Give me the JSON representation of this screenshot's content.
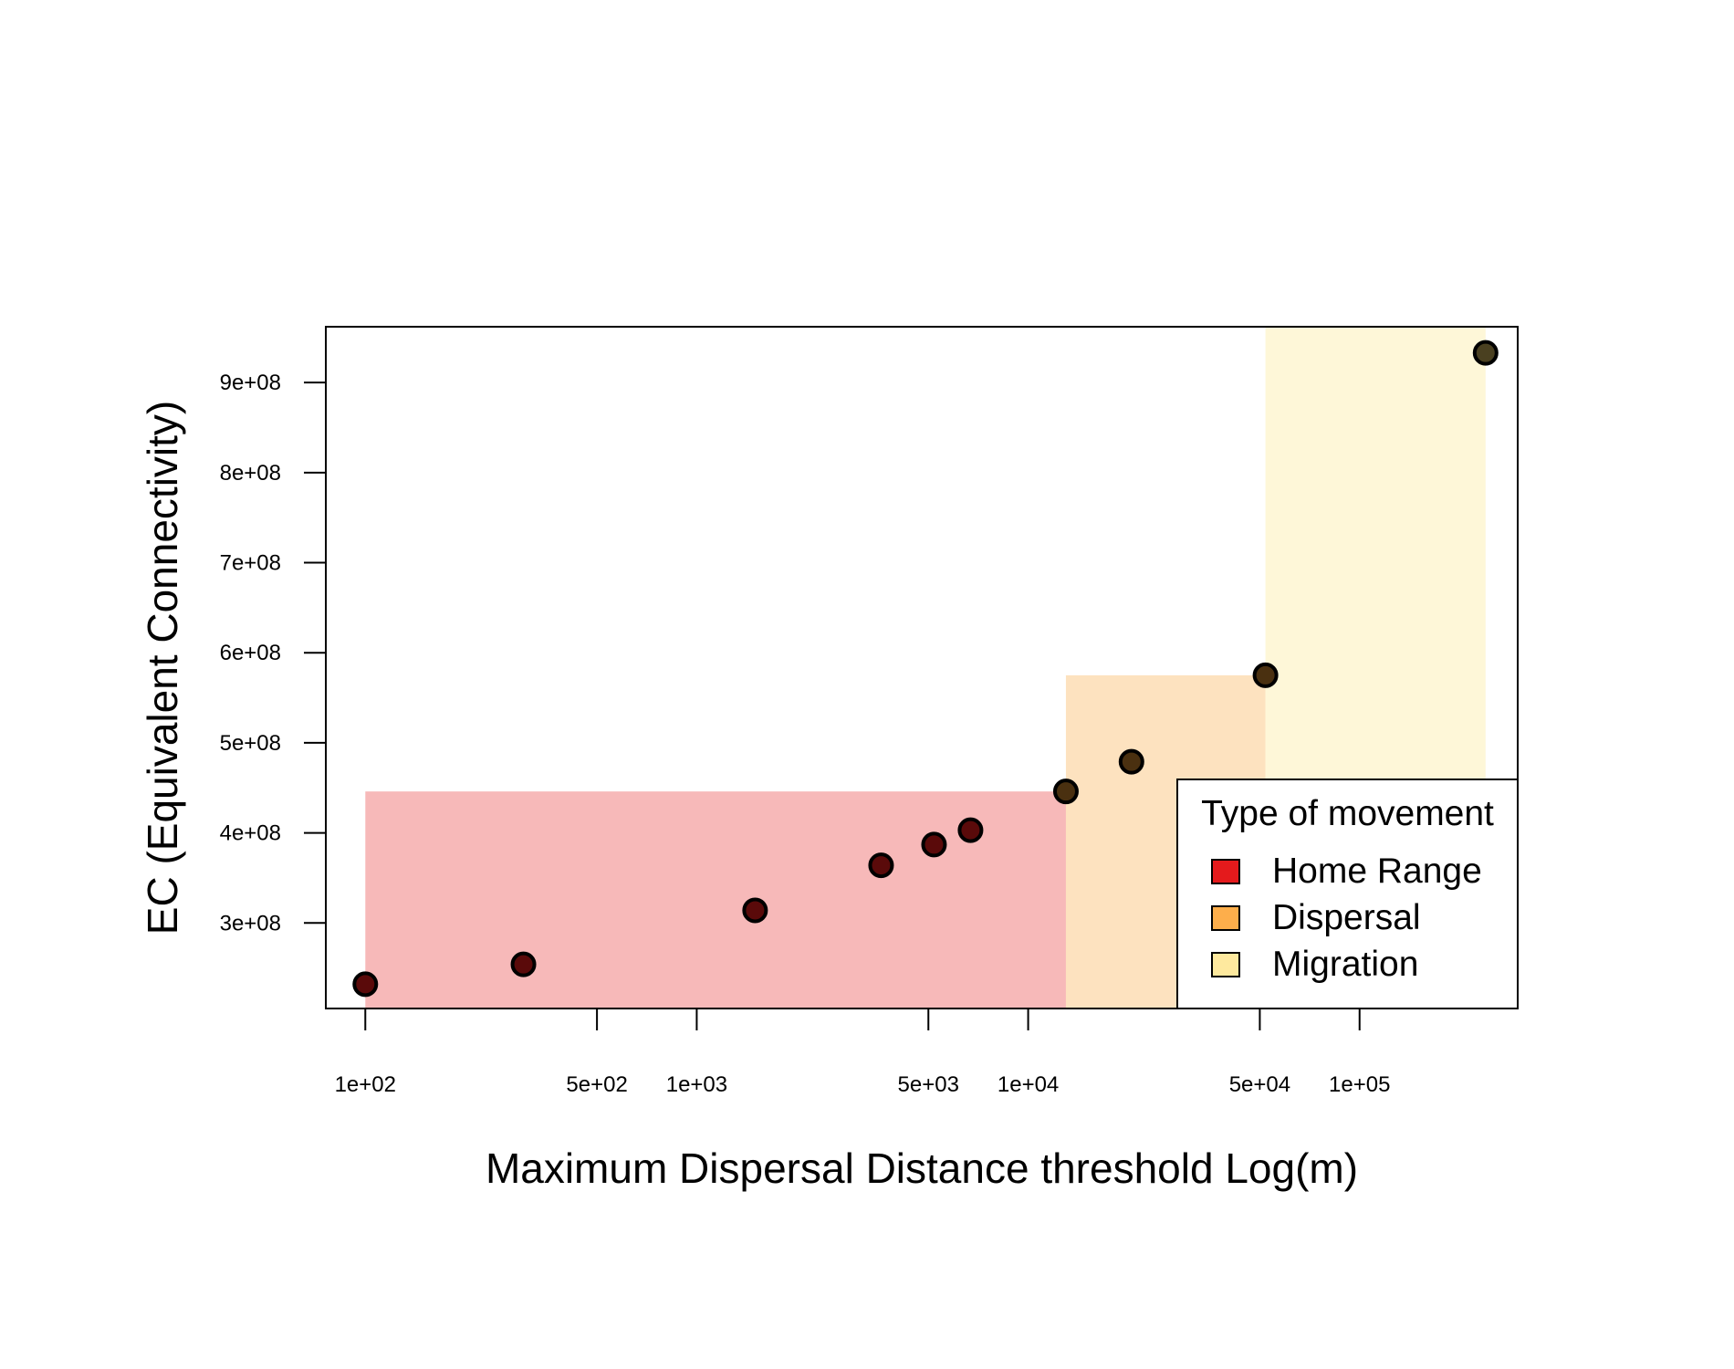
{
  "chart_data": {
    "type": "scatter",
    "title": "",
    "xlabel": "Maximum Dispersal Distance threshold Log(m)",
    "ylabel": "EC (Equivalent Connectivity)",
    "x_scale": "log10",
    "xlim": [
      76,
      300000
    ],
    "ylim": [
      205000000,
      962000000
    ],
    "x_ticks": [
      {
        "value": 100,
        "label": "1e+02"
      },
      {
        "value": 500,
        "label": "5e+02"
      },
      {
        "value": 1000,
        "label": "1e+03"
      },
      {
        "value": 5000,
        "label": "5e+03"
      },
      {
        "value": 10000,
        "label": "1e+04"
      },
      {
        "value": 50000,
        "label": "5e+04"
      },
      {
        "value": 100000,
        "label": "1e+05"
      }
    ],
    "y_ticks": [
      {
        "value": 300000000,
        "label": "3e+08"
      },
      {
        "value": 400000000,
        "label": "4e+08"
      },
      {
        "value": 500000000,
        "label": "5e+08"
      },
      {
        "value": 600000000,
        "label": "6e+08"
      },
      {
        "value": 700000000,
        "label": "7e+08"
      },
      {
        "value": 800000000,
        "label": "8e+08"
      },
      {
        "value": 900000000,
        "label": "9e+08"
      }
    ],
    "grid": false,
    "points": [
      {
        "x": 100,
        "y": 232000000,
        "movement": "Home Range"
      },
      {
        "x": 300,
        "y": 254000000,
        "movement": "Home Range"
      },
      {
        "x": 1500,
        "y": 314000000,
        "movement": "Home Range"
      },
      {
        "x": 3600,
        "y": 364000000,
        "movement": "Home Range"
      },
      {
        "x": 5200,
        "y": 387000000,
        "movement": "Home Range"
      },
      {
        "x": 6700,
        "y": 403000000,
        "movement": "Home Range"
      },
      {
        "x": 13000,
        "y": 446000000,
        "movement": "Dispersal"
      },
      {
        "x": 20500,
        "y": 479000000,
        "movement": "Dispersal"
      },
      {
        "x": 52000,
        "y": 575000000,
        "movement": "Dispersal"
      },
      {
        "x": 240000,
        "y": 933000000,
        "movement": "Migration"
      }
    ],
    "regions": [
      {
        "name": "Home Range",
        "x_from": 100,
        "x_to": 13000,
        "y_top": 446000000,
        "fill": "#f28b8b",
        "opacity": 0.6
      },
      {
        "name": "Dispersal",
        "x_from": 13000,
        "x_to": 52000,
        "y_top": 575000000,
        "fill": "#fcca8a",
        "opacity": 0.55
      },
      {
        "name": "Migration",
        "x_from": 52000,
        "x_to": 240000,
        "y_top": 962000000,
        "fill": "#fef3c7",
        "opacity": 0.7
      }
    ],
    "legend": {
      "title": "Type of movement",
      "placement": "bottom-right",
      "entries": [
        {
          "label": "Home Range",
          "color": "#e41a1c"
        },
        {
          "label": "Dispersal",
          "color": "#fdae4b"
        },
        {
          "label": "Migration",
          "color": "#fee99e"
        }
      ]
    },
    "point_style": {
      "edge": "#000000"
    }
  }
}
